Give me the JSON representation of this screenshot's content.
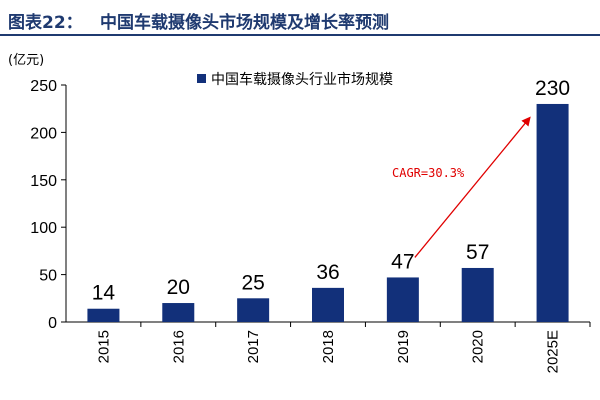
{
  "header": {
    "figure_label": "图表22：",
    "title": "中国车载摄像头市场规模及增长率预测"
  },
  "chart_data": {
    "type": "bar",
    "categories": [
      "2015",
      "2016",
      "2017",
      "2018",
      "2019",
      "2020",
      "2025E"
    ],
    "series": [
      {
        "name": "中国车载摄像头行业市场规模",
        "values": [
          14,
          20,
          25,
          36,
          47,
          57,
          230
        ],
        "color": "#12307a"
      }
    ],
    "data_labels": [
      "14",
      "20",
      "25",
      "36",
      "47",
      "57",
      "230"
    ],
    "ylabel": "(亿元)",
    "ylim": [
      0,
      250
    ],
    "yticks": [
      0,
      50,
      100,
      150,
      200,
      250
    ],
    "grid": false,
    "legend_position": "top",
    "annotation": {
      "text": "CAGR=30.3%",
      "color": "#e00000",
      "from_category": "2019",
      "to_category": "2025E"
    }
  }
}
